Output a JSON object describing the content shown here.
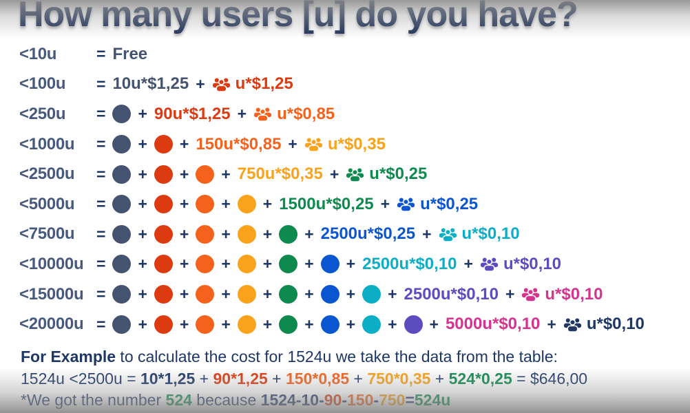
{
  "title": "How many users [u] do you have?",
  "colors": {
    "navy": "#1E3765",
    "slate": "#44536F",
    "label": "#47597C",
    "red": "#DC3A10",
    "orange": "#F4621C",
    "amber": "#F9A21C",
    "green": "#0F8A4F",
    "blue": "#0C55D0",
    "teal": "#0CAEC6",
    "purple": "#5C4CC0",
    "magenta": "#D4338E"
  },
  "symbols": {
    "equals": "=",
    "plus": "+"
  },
  "tiers": [
    {
      "label": "<10u",
      "dots": [],
      "term": {
        "text": "Free",
        "color": "slate"
      },
      "extra": null
    },
    {
      "label": "<100u",
      "dots": [],
      "term": {
        "text": "10u*$1,25",
        "color": "slate"
      },
      "extra": {
        "icon": "users-icon",
        "text": "u*$1,25",
        "color": "red"
      }
    },
    {
      "label": "<250u",
      "dots": [
        "slate"
      ],
      "term": {
        "text": "90u*$1,25",
        "color": "red"
      },
      "extra": {
        "icon": "users-icon",
        "text": "u*$0,85",
        "color": "orange"
      }
    },
    {
      "label": "<1000u",
      "dots": [
        "slate",
        "red"
      ],
      "term": {
        "text": "150u*$0,85",
        "color": "orange"
      },
      "extra": {
        "icon": "users-icon",
        "text": "u*$0,35",
        "color": "amber"
      }
    },
    {
      "label": "<2500u",
      "dots": [
        "slate",
        "red",
        "orange"
      ],
      "term": {
        "text": "750u*$0,35",
        "color": "amber"
      },
      "extra": {
        "icon": "users-icon",
        "text": "u*$0,25",
        "color": "green"
      }
    },
    {
      "label": "<5000u",
      "dots": [
        "slate",
        "red",
        "orange",
        "amber"
      ],
      "term": {
        "text": "1500u*$0,25",
        "color": "green"
      },
      "extra": {
        "icon": "users-icon",
        "text": "u*$0,25",
        "color": "blue"
      }
    },
    {
      "label": "<7500u",
      "dots": [
        "slate",
        "red",
        "orange",
        "amber",
        "green"
      ],
      "term": {
        "text": "2500u*$0,25",
        "color": "blue"
      },
      "extra": {
        "icon": "users-icon",
        "text": "u*$0,10",
        "color": "teal"
      }
    },
    {
      "label": "<10000u",
      "dots": [
        "slate",
        "red",
        "orange",
        "amber",
        "green",
        "blue"
      ],
      "term": {
        "text": "2500u*$0,10",
        "color": "teal"
      },
      "extra": {
        "icon": "users-icon",
        "text": "u*$0,10",
        "color": "purple"
      }
    },
    {
      "label": "<15000u",
      "dots": [
        "slate",
        "red",
        "orange",
        "amber",
        "green",
        "blue",
        "teal"
      ],
      "term": {
        "text": "2500u*$0,10",
        "color": "purple"
      },
      "extra": {
        "icon": "users-icon",
        "text": "u*$0,10",
        "color": "magenta"
      }
    },
    {
      "label": "<20000u",
      "dots": [
        "slate",
        "red",
        "orange",
        "amber",
        "green",
        "blue",
        "teal",
        "purple"
      ],
      "term": {
        "text": "5000u*$0,10",
        "color": "magenta"
      },
      "extra": {
        "icon": "users-icon",
        "text": "u*$0,10",
        "color": "navy"
      }
    }
  ],
  "example": {
    "lines": [
      [
        {
          "t": "For Example",
          "c": "navy",
          "b": true
        },
        {
          "t": " to calculate the cost for 1524u we take the data from the table:",
          "c": "navy",
          "b": false
        }
      ],
      [
        {
          "t": "1524u <2500u = ",
          "c": "navy",
          "b": false
        },
        {
          "t": "10*1,25",
          "c": "navy",
          "b": true
        },
        {
          "t": " + ",
          "c": "navy",
          "b": false
        },
        {
          "t": "90*1,25",
          "c": "red",
          "b": true
        },
        {
          "t": " + ",
          "c": "navy",
          "b": false
        },
        {
          "t": "150*0,85",
          "c": "orange",
          "b": true
        },
        {
          "t": " + ",
          "c": "navy",
          "b": false
        },
        {
          "t": "750*0,35",
          "c": "amber",
          "b": true
        },
        {
          "t": " + ",
          "c": "navy",
          "b": false
        },
        {
          "t": "524*0,25",
          "c": "green",
          "b": true
        },
        {
          "t": " = $646,00",
          "c": "navy",
          "b": false
        }
      ],
      [
        {
          "t": "*We got the number ",
          "c": "navy",
          "b": false
        },
        {
          "t": "524",
          "c": "green",
          "b": true
        },
        {
          "t": " because ",
          "c": "navy",
          "b": false
        },
        {
          "t": "1524-10",
          "c": "navy",
          "b": true
        },
        {
          "t": "-",
          "c": "navy",
          "b": true
        },
        {
          "t": "90",
          "c": "red",
          "b": true
        },
        {
          "t": "-",
          "c": "navy",
          "b": true
        },
        {
          "t": "150",
          "c": "orange",
          "b": true
        },
        {
          "t": "-",
          "c": "navy",
          "b": true
        },
        {
          "t": "750",
          "c": "amber",
          "b": true
        },
        {
          "t": "=",
          "c": "navy",
          "b": true
        },
        {
          "t": "524u",
          "c": "green",
          "b": true
        }
      ]
    ]
  }
}
